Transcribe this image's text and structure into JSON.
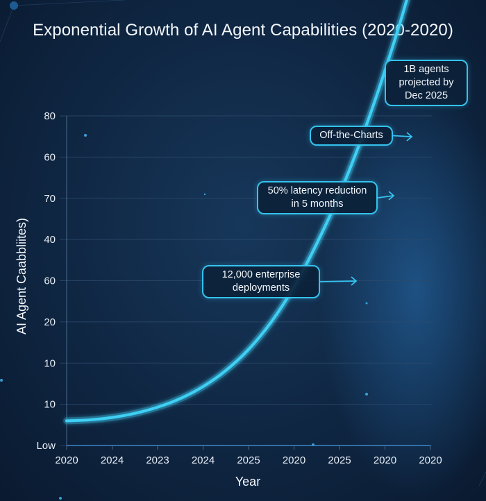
{
  "chart_data": {
    "type": "line",
    "title": "Exponential Growth of AI Agent Capabilities (2020-2020)",
    "xlabel": "Year",
    "ylabel": "AI Agent Caabbliites)",
    "x_tick_labels": [
      "2020",
      "2024",
      "2023",
      "2024",
      "2025",
      "2020",
      "2025",
      "2020",
      "2020"
    ],
    "y_tick_labels": [
      "Low",
      "10",
      "10",
      "20",
      "60",
      "40",
      "70",
      "60",
      "80"
    ],
    "grid": true,
    "legend": "none",
    "series": [
      {
        "name": "AI Agent Capabilities",
        "color": "#3fd0f5",
        "x_index": [
          0,
          0.5,
          1,
          1.5,
          2,
          2.5,
          3,
          3.5,
          4,
          4.5,
          5,
          5.5,
          6,
          6.5,
          7,
          7.5,
          8
        ],
        "y_position": [
          0.6,
          0.62,
          0.68,
          0.78,
          0.93,
          1.14,
          1.43,
          1.82,
          2.33,
          3.0,
          3.85,
          4.9,
          6.1,
          7.5,
          9.1,
          10.9,
          13.1
        ]
      }
    ],
    "annotations": [
      {
        "text_lines": [
          "12,000 enterprise",
          "deployments"
        ],
        "points_to_x_index": 5.05
      },
      {
        "text_lines": [
          "50% latency reduction",
          "in 5 months"
        ],
        "points_to_x_index": 5.95
      },
      {
        "text_lines": [
          "Off-the-Charts"
        ],
        "points_to_x_index": 7.95
      },
      {
        "text_lines": [
          "1B agents",
          "projected by",
          "Dec 2025"
        ],
        "points_to_x_index": 8
      }
    ],
    "accent_color": "#3fd0f5",
    "box_border_color": "#35c3ee"
  }
}
